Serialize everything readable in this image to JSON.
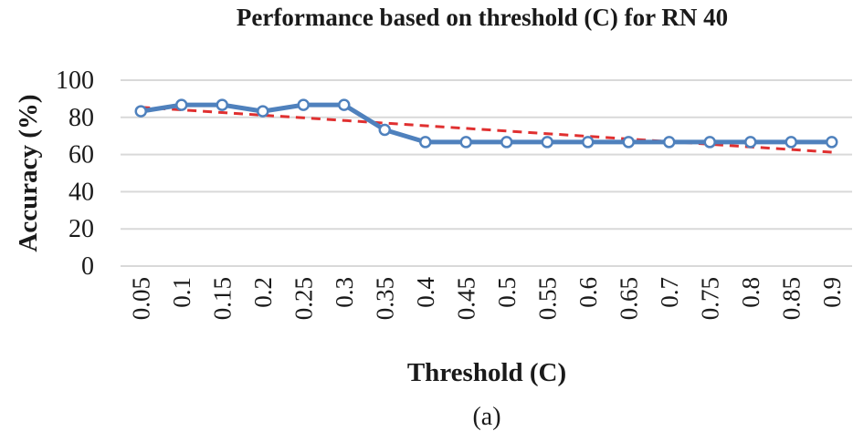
{
  "chart_data": {
    "type": "line",
    "title": "Performance based on threshold (C) for RN 40",
    "xlabel": "Threshold (C)",
    "ylabel": "Accuracy (%)",
    "categories": [
      "0.05",
      "0.1",
      "0.15",
      "0.2",
      "0.25",
      "0.3",
      "0.35",
      "0.4",
      "0.45",
      "0.5",
      "0.55",
      "0.6",
      "0.65",
      "0.7",
      "0.75",
      "0.8",
      "0.85",
      "0.9"
    ],
    "ylim": [
      0,
      100
    ],
    "yticks": [
      "0",
      "20",
      "40",
      "60",
      "80",
      "100"
    ],
    "grid": true,
    "series": [
      {
        "values": [
          83.3,
          86.7,
          86.7,
          83.3,
          86.7,
          86.7,
          73.3,
          66.7,
          66.7,
          66.7,
          66.7,
          66.7,
          66.7,
          66.7,
          66.7,
          66.7,
          66.7,
          66.7
        ],
        "color": "#4f81bd",
        "marker": "circle"
      },
      {
        "trendline": "linear",
        "color": "#e03030",
        "dashed": true
      }
    ]
  },
  "caption": "(a)"
}
